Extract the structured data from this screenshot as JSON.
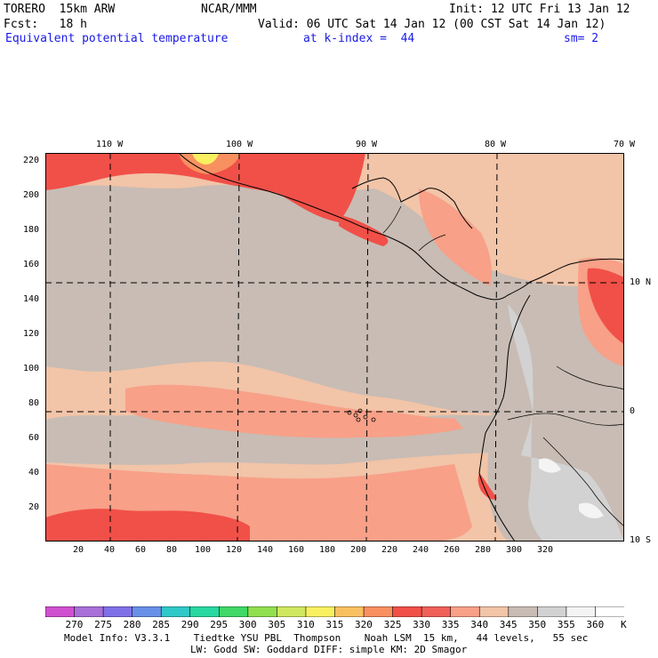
{
  "header": {
    "model": "TORERO  15km ARW",
    "org": "NCAR/MMM",
    "init": "Init: 12 UTC Fri 13 Jan 12",
    "fcst": "Fcst:   18 h",
    "valid": "Valid: 06 UTC Sat 14 Jan 12 (00 CST Sat 14 Jan 12)",
    "field": "Equivalent potential temperature",
    "level": "at k-index =  44",
    "smooth": "sm= 2"
  },
  "map": {
    "top_lon_labels": [
      "110 W",
      "100 W",
      "90 W",
      "80 W",
      "70 W"
    ],
    "right_lat_labels": [
      "10 N",
      "0",
      "10 S"
    ],
    "y_ticks": [
      "220",
      "200",
      "180",
      "160",
      "140",
      "120",
      "100",
      "80",
      "60",
      "40",
      "20"
    ],
    "x_ticks": [
      "20",
      "40",
      "60",
      "80",
      "100",
      "120",
      "140",
      "160",
      "180",
      "200",
      "220",
      "240",
      "260",
      "280",
      "300",
      "320"
    ]
  },
  "colorbar": {
    "unit": "K",
    "labels": [
      "270",
      "275",
      "280",
      "285",
      "290",
      "295",
      "300",
      "305",
      "310",
      "315",
      "320",
      "325",
      "330",
      "335",
      "340",
      "345",
      "350",
      "355",
      "360"
    ],
    "colors": [
      "#d050d0",
      "#a870d8",
      "#8070e8",
      "#6890e8",
      "#30c8c8",
      "#28d8a0",
      "#40d868",
      "#90e050",
      "#d0e860",
      "#f8f060",
      "#f8c060",
      "#f89060",
      "#f05048",
      "#f06058",
      "#f8a088",
      "#f2c4a8",
      "#c8bcb4",
      "#d2d2d2",
      "#f4f4f4",
      "#ffffff"
    ]
  },
  "footer": {
    "line1": "Model Info: V3.3.1    Tiedtke YSU PBL  Thompson    Noah LSM  15 km,   44 levels,   55 sec",
    "line2": "LW: Godd SW: Goddard DIFF: simple KM: 2D Smagor"
  }
}
